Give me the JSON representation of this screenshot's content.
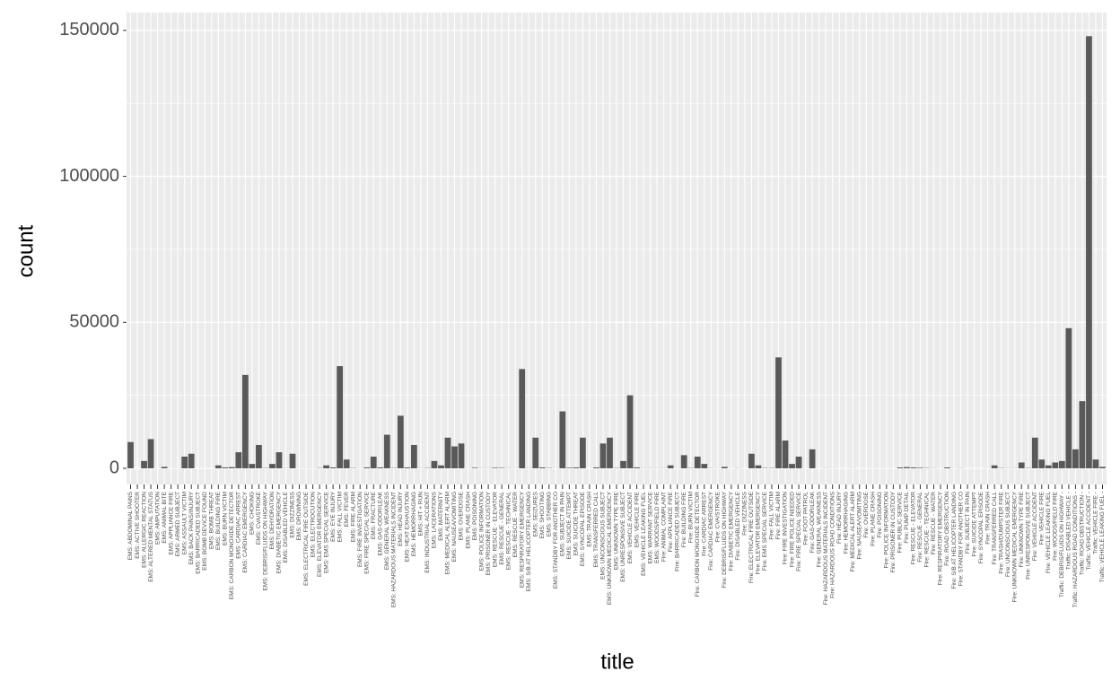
{
  "chart_data": {
    "type": "bar",
    "xlabel": "title",
    "ylabel": "count",
    "categories": [
      "EMS: ABDOMINAL PAINS",
      "EMS: ACTIVE SHOOTER",
      "EMS: ALLERGIC REACTION",
      "EMS: ALTERED MENTAL STATUS",
      "EMS: AMPUTATION",
      "EMS: ANIMAL BITE",
      "EMS: APPLIANCE FIRE",
      "EMS: ARMED SUBJECT",
      "EMS: ASSAULT VICTIM",
      "EMS: BACK PAINS/INJURY",
      "EMS: BARRICADED SUBJECT",
      "EMS: BOMB DEVICE FOUND",
      "EMS: BOMB THREAT",
      "EMS: BUILDING FIRE",
      "EMS: BURN VICTIM",
      "EMS: CARBON MONOXIDE DETECTOR",
      "EMS: CARDIAC ARREST",
      "EMS: CARDIAC EMERGENCY",
      "EMS: CHOKING",
      "EMS: CVA/STROKE",
      "EMS: DEBRIS/FLUIDS ON HIGHWAY",
      "EMS: DEHYDRATION",
      "EMS: DIABETIC EMERGENCY",
      "EMS: DISABLED VEHICLE",
      "EMS: DIZZINESS",
      "EMS: DROWNING",
      "EMS: ELECTRICAL FIRE OUTSIDE",
      "EMS: ELECTROCUTION",
      "EMS: ELEVATOR EMERGENCY",
      "EMS: EMS SPECIAL SERVICE",
      "EMS: EYE INJURY",
      "EMS: FALL VICTIM",
      "EMS: FEVER",
      "EMS: FIRE ALARM",
      "EMS: FIRE INVESTIGATION",
      "EMS: FIRE SPECIAL SERVICE",
      "EMS: FRACTURE",
      "EMS: GAS-ODOR/LEAK",
      "EMS: GENERAL WEAKNESS",
      "EMS: HAZARDOUS MATERIALS INCIDENT",
      "EMS: HEAD INJURY",
      "EMS: HEAT EXHAUSTION",
      "EMS: HEMORRHAGING",
      "EMS: HIT + RUN",
      "EMS: INDUSTRIAL ACCIDENT",
      "EMS: LACERATIONS",
      "EMS: MATERNITY",
      "EMS: MEDICAL ALERT ALARM",
      "EMS: NAUSEA/VOMITING",
      "EMS: OVERDOSE",
      "EMS: PLANE CRASH",
      "EMS: POISONING",
      "EMS: POLICE INFORMATION",
      "EMS: PRISONER IN CUSTODY",
      "EMS: RESCUE - ELEVATOR",
      "EMS: RESCUE - GENERAL",
      "EMS: RESCUE - TECHNICAL",
      "EMS: RESCUE - WATER",
      "EMS: RESPIRATORY EMERGENCY",
      "EMS: S/B AT HELICOPTER LANDING",
      "EMS: SEIZURES",
      "EMS: SHOOTING",
      "EMS: STABBING",
      "EMS: STANDBY FOR ANOTHER CO",
      "EMS: SUBJECT IN PAIN",
      "EMS: SUICIDE ATTEMPT",
      "EMS: SUICIDE THREAT",
      "EMS: SYNCOPAL EPISODE",
      "EMS: TRAIN CRASH",
      "EMS: TRANSFERRED CALL",
      "EMS: UNCONSCIOUS SUBJECT",
      "EMS: UNKNOWN MEDICAL EMERGENCY",
      "EMS: UNKNOWN TYPE FIRE",
      "EMS: UNRESPONSIVE SUBJECT",
      "EMS: VEHICLE ACCIDENT",
      "EMS: VEHICLE FIRE",
      "EMS: VEHICLE LEAKING FUEL",
      "EMS: WARRANT SERVICE",
      "EMS: WOODS/FIELD FIRE",
      "Fire: ANIMAL COMPLAINT",
      "Fire: APPLIANCE FIRE",
      "Fire: BARRICADED SUBJECT",
      "Fire: BUILDING FIRE",
      "Fire: BURN VICTIM",
      "Fire: CARBON MONOXIDE DETECTOR",
      "Fire: CARDIAC ARREST",
      "Fire: CARDIAC EMERGENCY",
      "Fire: CVA/STROKE",
      "Fire: DEBRIS/FLUIDS ON HIGHWAY",
      "Fire: DIABETIC EMERGENCY",
      "Fire: DISABLED VEHICLE",
      "Fire: DIZZINESS",
      "Fire: ELECTRICAL FIRE OUTSIDE",
      "Fire: ELEVATOR EMERGENCY",
      "Fire: EMS SPECIAL SERVICE",
      "Fire: FALL VICTIM",
      "Fire: FIRE ALARM",
      "Fire: FIRE INVESTIGATION",
      "Fire: FIRE POLICE NEEDED",
      "Fire: FIRE SPECIAL SERVICE",
      "Fire: FOOT PATROL",
      "Fire: GAS-ODOR/LEAK",
      "Fire: GENERAL WEAKNESS",
      "Fire: HAZARDOUS MATERIALS INCIDENT",
      "Fire: HAZARDOUS ROAD CONDITIONS",
      "Fire: HEAD INJURY",
      "Fire: HEMORRHAGING",
      "Fire: MEDICAL ALERT ALARM",
      "Fire: NAUSEA/VOMITING",
      "Fire: OVERDOSE",
      "Fire: PLANE CRASH",
      "Fire: POISONING",
      "Fire: POLICE INFORMATION",
      "Fire: PRISONER IN CUSTODY",
      "Fire: PUBLIC SERVICE",
      "Fire: PUMP DETAIL",
      "Fire: RESCUE - ELEVATOR",
      "Fire: RESCUE - GENERAL",
      "Fire: RESCUE - TECHNICAL",
      "Fire: RESCUE - WATER",
      "Fire: RESPIRATORY EMERGENCY",
      "Fire: ROAD OBSTRUCTION",
      "Fire: S/B AT HELICOPTER LANDING",
      "Fire: STANDBY FOR ANOTHER CO",
      "Fire: SUBJECT IN PAIN",
      "Fire: SUICIDE ATTEMPT",
      "Fire: SYNCOPAL EPISODE",
      "Fire: TRAIN CRASH",
      "Fire: TRANSFERRED CALL",
      "Fire: TRASH/DUMPSTER FIRE",
      "Fire: UNCONSCIOUS SUBJECT",
      "Fire: UNKNOWN MEDICAL EMERGENCY",
      "Fire: UNKNOWN TYPE FIRE",
      "Fire: UNRESPONSIVE SUBJECT",
      "Fire: VEHICLE ACCIDENT",
      "Fire: VEHICLE FIRE",
      "Fire: VEHICLE LEAKING FUEL",
      "Fire: WOODS/FIELD FIRE",
      "Traffic: DEBRIS/FLUIDS ON HIGHWAY -",
      "Traffic: DISABLED VEHICLE -",
      "Traffic: HAZARDOUS ROAD CONDITIONS -",
      "Traffic: ROAD OBSTRUCTION -",
      "Traffic: VEHICLE ACCIDENT -",
      "Traffic: VEHICLE FIRE -",
      "Traffic: VEHICLE LEAKING FUEL -"
    ],
    "values": [
      9000,
      2,
      2500,
      10000,
      20,
      500,
      10,
      30,
      4000,
      5000,
      10,
      5,
      5,
      1000,
      300,
      400,
      5500,
      32000,
      1500,
      8000,
      100,
      1500,
      5500,
      50,
      5000,
      20,
      30,
      20,
      100,
      1000,
      300,
      35000,
      3000,
      100,
      20,
      300,
      4000,
      300,
      11500,
      100,
      18000,
      300,
      8000,
      50,
      100,
      2500,
      1000,
      10500,
      7500,
      8500,
      20,
      200,
      50,
      50,
      200,
      150,
      50,
      30,
      34000,
      50,
      10500,
      300,
      100,
      20,
      19500,
      200,
      300,
      10500,
      5,
      300,
      8500,
      10500,
      100,
      2500,
      25000,
      300,
      50,
      50,
      50,
      50,
      1000,
      20,
      4500,
      100,
      4000,
      1500,
      50,
      20,
      500,
      10,
      50,
      10,
      5000,
      1000,
      100,
      100,
      38000,
      9500,
      1500,
      4000,
      20,
      6500,
      10,
      50,
      30,
      5,
      5,
      30,
      5,
      5,
      20,
      10,
      10,
      5,
      300,
      400,
      300,
      200,
      100,
      50,
      10,
      300,
      20,
      50,
      5,
      5,
      5,
      20,
      1000,
      100,
      50,
      50,
      2000,
      100,
      10500,
      3000,
      1000,
      2000,
      2500,
      48000,
      6500,
      23000,
      148000,
      3000,
      500
    ],
    "color": "#595959",
    "ylim": [
      -5530,
      156100
    ],
    "yticks": [
      0,
      50000,
      100000,
      150000
    ],
    "grid": true
  }
}
